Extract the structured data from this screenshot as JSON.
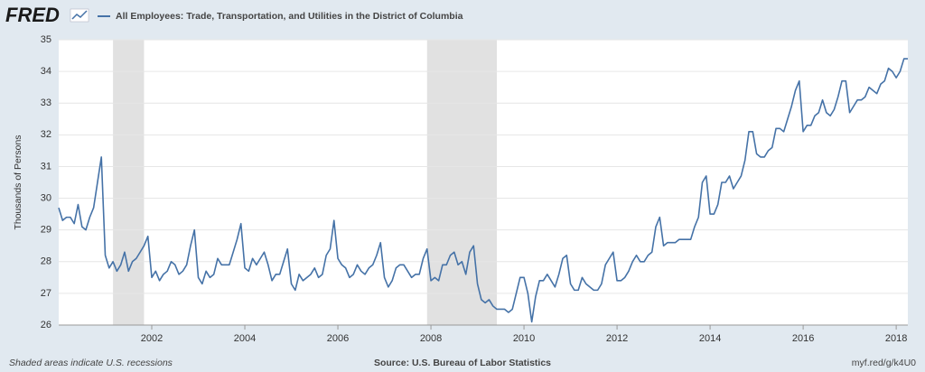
{
  "logo": "FRED",
  "chart_data": {
    "type": "line",
    "title": "All Employees: Trade, Transportation, and Utilities in the District of Columbia",
    "ylabel": "Thousands of Persons",
    "note": "Shaded areas indicate U.S. recessions",
    "source": "Source: U.S. Bureau of Labor Statistics",
    "url": "myf.red/g/k4U0",
    "recessions": [
      [
        "2001-03",
        "2001-11"
      ],
      [
        "2007-12",
        "2009-06"
      ]
    ],
    "xlim": [
      "2000-01",
      "2018-04"
    ],
    "xticks": [
      2002,
      2004,
      2006,
      2008,
      2010,
      2012,
      2014,
      2016,
      2018
    ],
    "ylim": [
      26,
      35
    ],
    "yticks": [
      26,
      27,
      28,
      29,
      30,
      31,
      32,
      33,
      34,
      35
    ],
    "grid": true,
    "x": [
      "2000-01",
      "2000-02",
      "2000-03",
      "2000-04",
      "2000-05",
      "2000-06",
      "2000-07",
      "2000-08",
      "2000-09",
      "2000-10",
      "2000-11",
      "2000-12",
      "2001-01",
      "2001-02",
      "2001-03",
      "2001-04",
      "2001-05",
      "2001-06",
      "2001-07",
      "2001-08",
      "2001-09",
      "2001-10",
      "2001-11",
      "2001-12",
      "2002-01",
      "2002-02",
      "2002-03",
      "2002-04",
      "2002-05",
      "2002-06",
      "2002-07",
      "2002-08",
      "2002-09",
      "2002-10",
      "2002-11",
      "2002-12",
      "2003-01",
      "2003-02",
      "2003-03",
      "2003-04",
      "2003-05",
      "2003-06",
      "2003-07",
      "2003-08",
      "2003-09",
      "2003-10",
      "2003-11",
      "2003-12",
      "2004-01",
      "2004-02",
      "2004-03",
      "2004-04",
      "2004-05",
      "2004-06",
      "2004-07",
      "2004-08",
      "2004-09",
      "2004-10",
      "2004-11",
      "2004-12",
      "2005-01",
      "2005-02",
      "2005-03",
      "2005-04",
      "2005-05",
      "2005-06",
      "2005-07",
      "2005-08",
      "2005-09",
      "2005-10",
      "2005-11",
      "2005-12",
      "2006-01",
      "2006-02",
      "2006-03",
      "2006-04",
      "2006-05",
      "2006-06",
      "2006-07",
      "2006-08",
      "2006-09",
      "2006-10",
      "2006-11",
      "2006-12",
      "2007-01",
      "2007-02",
      "2007-03",
      "2007-04",
      "2007-05",
      "2007-06",
      "2007-07",
      "2007-08",
      "2007-09",
      "2007-10",
      "2007-11",
      "2007-12",
      "2008-01",
      "2008-02",
      "2008-03",
      "2008-04",
      "2008-05",
      "2008-06",
      "2008-07",
      "2008-08",
      "2008-09",
      "2008-10",
      "2008-11",
      "2008-12",
      "2009-01",
      "2009-02",
      "2009-03",
      "2009-04",
      "2009-05",
      "2009-06",
      "2009-07",
      "2009-08",
      "2009-09",
      "2009-10",
      "2009-11",
      "2009-12",
      "2010-01",
      "2010-02",
      "2010-03",
      "2010-04",
      "2010-05",
      "2010-06",
      "2010-07",
      "2010-08",
      "2010-09",
      "2010-10",
      "2010-11",
      "2010-12",
      "2011-01",
      "2011-02",
      "2011-03",
      "2011-04",
      "2011-05",
      "2011-06",
      "2011-07",
      "2011-08",
      "2011-09",
      "2011-10",
      "2011-11",
      "2011-12",
      "2012-01",
      "2012-02",
      "2012-03",
      "2012-04",
      "2012-05",
      "2012-06",
      "2012-07",
      "2012-08",
      "2012-09",
      "2012-10",
      "2012-11",
      "2012-12",
      "2013-01",
      "2013-02",
      "2013-03",
      "2013-04",
      "2013-05",
      "2013-06",
      "2013-07",
      "2013-08",
      "2013-09",
      "2013-10",
      "2013-11",
      "2013-12",
      "2014-01",
      "2014-02",
      "2014-03",
      "2014-04",
      "2014-05",
      "2014-06",
      "2014-07",
      "2014-08",
      "2014-09",
      "2014-10",
      "2014-11",
      "2014-12",
      "2015-01",
      "2015-02",
      "2015-03",
      "2015-04",
      "2015-05",
      "2015-06",
      "2015-07",
      "2015-08",
      "2015-09",
      "2015-10",
      "2015-11",
      "2015-12",
      "2016-01",
      "2016-02",
      "2016-03",
      "2016-04",
      "2016-05",
      "2016-06",
      "2016-07",
      "2016-08",
      "2016-09",
      "2016-10",
      "2016-11",
      "2016-12",
      "2017-01",
      "2017-02",
      "2017-03",
      "2017-04",
      "2017-05",
      "2017-06",
      "2017-07",
      "2017-08",
      "2017-09",
      "2017-10",
      "2017-11",
      "2017-12",
      "2018-01",
      "2018-02",
      "2018-03",
      "2018-04"
    ],
    "series": [
      {
        "name": "All Employees: Trade, Transportation, and Utilities in the District of Columbia",
        "color": "#4572a7",
        "values": [
          29.7,
          29.3,
          29.4,
          29.4,
          29.2,
          29.8,
          29.1,
          29.0,
          29.4,
          29.7,
          30.5,
          31.3,
          28.2,
          27.8,
          28.0,
          27.7,
          27.9,
          28.3,
          27.7,
          28.0,
          28.1,
          28.3,
          28.5,
          28.8,
          27.5,
          27.7,
          27.4,
          27.6,
          27.7,
          28.0,
          27.9,
          27.6,
          27.7,
          27.9,
          28.5,
          29.0,
          27.5,
          27.3,
          27.7,
          27.5,
          27.6,
          28.1,
          27.9,
          27.9,
          27.9,
          28.3,
          28.7,
          29.2,
          27.8,
          27.7,
          28.1,
          27.9,
          28.1,
          28.3,
          27.9,
          27.4,
          27.6,
          27.6,
          28.0,
          28.4,
          27.3,
          27.1,
          27.6,
          27.4,
          27.5,
          27.6,
          27.8,
          27.5,
          27.6,
          28.2,
          28.4,
          29.3,
          28.1,
          27.9,
          27.8,
          27.5,
          27.6,
          27.9,
          27.7,
          27.6,
          27.8,
          27.9,
          28.2,
          28.6,
          27.5,
          27.2,
          27.4,
          27.8,
          27.9,
          27.9,
          27.7,
          27.5,
          27.6,
          27.6,
          28.1,
          28.4,
          27.4,
          27.5,
          27.4,
          27.9,
          27.9,
          28.2,
          28.3,
          27.9,
          28.0,
          27.6,
          28.3,
          28.5,
          27.3,
          26.8,
          26.7,
          26.8,
          26.6,
          26.5,
          26.5,
          26.5,
          26.4,
          26.5,
          27.0,
          27.5,
          27.5,
          27.0,
          26.1,
          26.9,
          27.4,
          27.4,
          27.6,
          27.4,
          27.2,
          27.6,
          28.1,
          28.2,
          27.3,
          27.1,
          27.1,
          27.5,
          27.3,
          27.2,
          27.1,
          27.1,
          27.3,
          27.9,
          28.1,
          28.3,
          27.4,
          27.4,
          27.5,
          27.7,
          28.0,
          28.2,
          28.0,
          28.0,
          28.2,
          28.3,
          29.1,
          29.4,
          28.5,
          28.6,
          28.6,
          28.6,
          28.7,
          28.7,
          28.7,
          28.7,
          29.1,
          29.4,
          30.5,
          30.7,
          29.5,
          29.5,
          29.8,
          30.5,
          30.5,
          30.7,
          30.3,
          30.5,
          30.7,
          31.2,
          32.1,
          32.1,
          31.4,
          31.3,
          31.3,
          31.5,
          31.6,
          32.2,
          32.2,
          32.1,
          32.5,
          32.9,
          33.4,
          33.7,
          32.1,
          32.3,
          32.3,
          32.6,
          32.7,
          33.1,
          32.7,
          32.6,
          32.8,
          33.2,
          33.7,
          33.7,
          32.7,
          32.9,
          33.1,
          33.1,
          33.2,
          33.5,
          33.4,
          33.3,
          33.6,
          33.7,
          34.1,
          34.0,
          33.8,
          34.0,
          34.4,
          34.4
        ]
      }
    ]
  }
}
